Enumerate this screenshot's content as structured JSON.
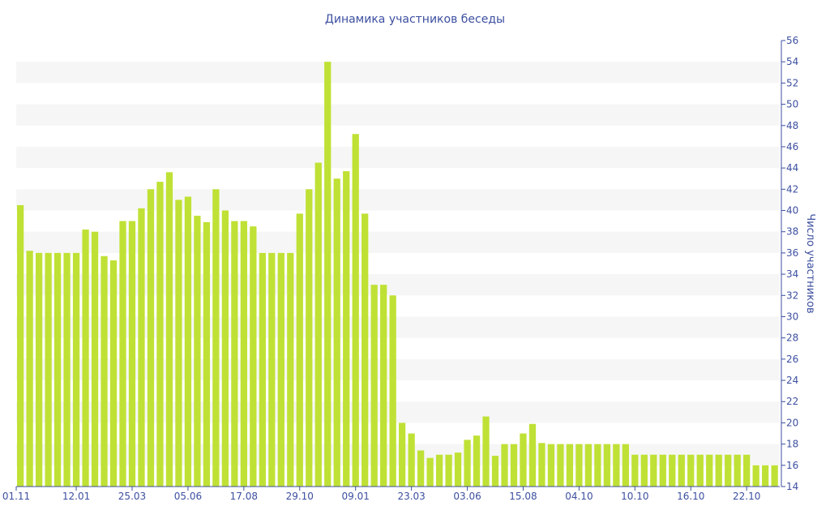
{
  "chart_data": {
    "type": "bar",
    "title": "Динамика участников беседы",
    "ylabel": "Число участников",
    "xlabel": "",
    "ylim": [
      14,
      56
    ],
    "y_ticks": [
      14,
      16,
      18,
      20,
      22,
      24,
      26,
      28,
      30,
      32,
      34,
      36,
      38,
      40,
      42,
      44,
      46,
      48,
      50,
      52,
      54,
      56
    ],
    "x_tick_labels": [
      "01.11",
      "12.01",
      "25.03",
      "05.06",
      "17.08",
      "29.10",
      "09.01",
      "23.03",
      "03.06",
      "15.08",
      "04.10",
      "10.10",
      "16.10",
      "22.10"
    ],
    "x_tick_bar_index": [
      0,
      6,
      12,
      18,
      24,
      30,
      36,
      42,
      48,
      54,
      60,
      66,
      72,
      78
    ],
    "values": [
      40.5,
      36.2,
      36,
      36,
      36,
      36,
      36,
      38.2,
      38,
      35.7,
      35.3,
      39,
      39,
      40.2,
      42,
      42.7,
      43.6,
      41,
      41.3,
      39.5,
      38.9,
      42,
      40,
      39,
      39,
      38.5,
      36,
      36,
      36,
      36,
      39.7,
      42,
      44.5,
      54,
      43,
      43.7,
      47.2,
      39.7,
      33,
      33,
      32,
      20,
      19,
      17.4,
      16.7,
      17,
      17,
      17.2,
      18.4,
      18.8,
      20.6,
      16.9,
      18,
      18,
      19,
      19.9,
      18.1,
      18,
      18,
      18,
      18,
      18,
      18,
      18,
      18,
      18,
      17,
      17,
      17,
      17,
      17,
      17,
      17,
      17,
      17,
      17,
      17,
      17,
      17,
      16,
      16,
      16
    ],
    "grid": "horizontal alternating bands",
    "colors": {
      "bar": "#bfe135",
      "text": "#3c4fa0",
      "band": "#f6f6f6",
      "axis": "#3c4fa0"
    }
  }
}
